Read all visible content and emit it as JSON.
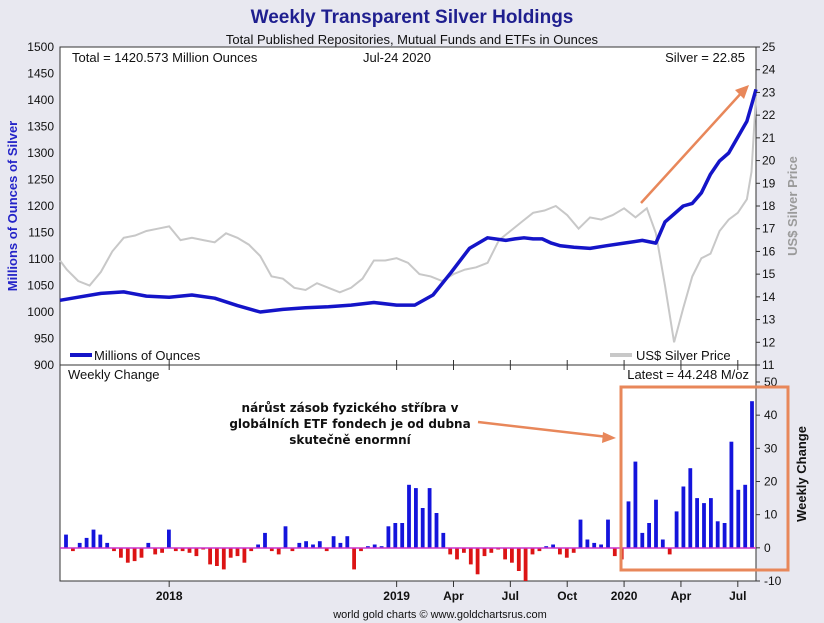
{
  "chart_data": {
    "type": "line",
    "title": "Weekly Transparent Silver Holdings",
    "subtitle": "Total Published Repositories, Mutual Funds and ETFs in Ounces",
    "total_text": "Total = 1420.573 Million Ounces",
    "date_text": "Jul-24  2020",
    "silver_text": "Silver = 22.85",
    "lower_title": "Weekly Change",
    "latest_text": "Latest = 44.248 M/oz",
    "ylabel_left": "Millions of Ounces of Silver",
    "ylabel_right": "US$ Silver Price",
    "ylabel_lower": "Weekly Change",
    "legend": {
      "holdings": "Millions of Ounces",
      "price": "US$ Silver Price"
    },
    "annotation": [
      "nárůst zásob fyzického stříbra v",
      "globálních ETF fondech je od dubna",
      "skutečně enormní"
    ],
    "footer": "world gold charts © www.goldchartsrus.com",
    "ylim_left": [
      900,
      1500
    ],
    "yticks_left": [
      900,
      950,
      1000,
      1050,
      1100,
      1150,
      1200,
      1250,
      1300,
      1350,
      1400,
      1450,
      1500
    ],
    "ylim_right": [
      11,
      25
    ],
    "yticks_right": [
      11,
      12,
      13,
      14,
      15,
      16,
      17,
      18,
      19,
      20,
      21,
      22,
      23,
      24,
      25
    ],
    "ylim_lower": [
      -10,
      50
    ],
    "yticks_lower": [
      -10,
      0,
      10,
      20,
      30,
      40,
      50
    ],
    "x_tick_labels": [
      "2018",
      "2019",
      "Apr",
      "Jul",
      "Oct",
      "2020",
      "Apr",
      "Jul"
    ],
    "x_tick_positions": [
      2018.0,
      2019.0,
      2019.25,
      2019.5,
      2019.75,
      2020.0,
      2020.25,
      2020.5
    ],
    "xlim": [
      2017.52,
      2020.58
    ],
    "holdings_series": {
      "name": "Millions of Ounces",
      "x": [
        2017.52,
        2017.6,
        2017.7,
        2017.8,
        2017.9,
        2018.0,
        2018.1,
        2018.2,
        2018.3,
        2018.4,
        2018.5,
        2018.6,
        2018.7,
        2018.8,
        2018.9,
        2019.0,
        2019.08,
        2019.16,
        2019.24,
        2019.32,
        2019.4,
        2019.48,
        2019.52,
        2019.56,
        2019.6,
        2019.64,
        2019.68,
        2019.72,
        2019.78,
        2019.85,
        2019.92,
        2020.0,
        2020.08,
        2020.14,
        2020.18,
        2020.22,
        2020.26,
        2020.3,
        2020.34,
        2020.38,
        2020.42,
        2020.46,
        2020.5,
        2020.54,
        2020.56,
        2020.58
      ],
      "values": [
        1022,
        1028,
        1035,
        1038,
        1030,
        1028,
        1032,
        1026,
        1012,
        1000,
        1005,
        1008,
        1010,
        1013,
        1018,
        1013,
        1013,
        1032,
        1075,
        1120,
        1140,
        1135,
        1138,
        1140,
        1138,
        1138,
        1130,
        1125,
        1122,
        1120,
        1125,
        1130,
        1135,
        1130,
        1170,
        1185,
        1200,
        1205,
        1225,
        1260,
        1285,
        1300,
        1330,
        1360,
        1390,
        1420
      ]
    },
    "price_series": {
      "name": "US$ Silver Price",
      "x": [
        2017.52,
        2017.55,
        2017.6,
        2017.65,
        2017.7,
        2017.75,
        2017.8,
        2017.85,
        2017.9,
        2017.95,
        2018.0,
        2018.05,
        2018.1,
        2018.15,
        2018.2,
        2018.25,
        2018.3,
        2018.35,
        2018.4,
        2018.45,
        2018.5,
        2018.55,
        2018.6,
        2018.65,
        2018.7,
        2018.75,
        2018.8,
        2018.85,
        2018.9,
        2018.95,
        2019.0,
        2019.05,
        2019.1,
        2019.15,
        2019.2,
        2019.25,
        2019.3,
        2019.35,
        2019.4,
        2019.45,
        2019.5,
        2019.55,
        2019.6,
        2019.65,
        2019.7,
        2019.75,
        2019.8,
        2019.85,
        2019.9,
        2019.95,
        2020.0,
        2020.05,
        2020.1,
        2020.14,
        2020.18,
        2020.22,
        2020.26,
        2020.3,
        2020.34,
        2020.38,
        2020.42,
        2020.46,
        2020.5,
        2020.54,
        2020.56,
        2020.58
      ],
      "values": [
        15.6,
        15.2,
        14.7,
        14.5,
        15.1,
        16.0,
        16.6,
        16.7,
        16.9,
        17.0,
        17.1,
        16.5,
        16.6,
        16.5,
        16.4,
        16.8,
        16.6,
        16.3,
        15.8,
        14.9,
        14.8,
        14.4,
        14.3,
        14.6,
        14.4,
        14.2,
        14.4,
        14.8,
        15.6,
        15.6,
        15.7,
        15.5,
        15.0,
        14.9,
        14.7,
        15.0,
        15.2,
        15.3,
        15.5,
        16.5,
        16.9,
        17.3,
        17.7,
        17.8,
        18.0,
        17.6,
        17.0,
        17.5,
        17.4,
        17.6,
        17.9,
        17.5,
        17.9,
        16.8,
        14.5,
        12.0,
        13.5,
        14.9,
        15.7,
        15.9,
        16.9,
        17.4,
        17.7,
        18.3,
        19.5,
        22.85
      ]
    },
    "weekly_change": {
      "name": "Weekly Change",
      "values": [
        4.0,
        -1.0,
        1.5,
        3.0,
        5.5,
        4.0,
        1.5,
        -1.0,
        -3.0,
        -4.5,
        -4.0,
        -3.0,
        1.5,
        -2.0,
        -1.5,
        5.5,
        -1.0,
        -1.0,
        -1.5,
        -2.5,
        -0.5,
        -5.0,
        -5.5,
        -6.5,
        -3.0,
        -2.5,
        -4.5,
        -1.0,
        1.0,
        4.5,
        -1.0,
        -2.0,
        6.5,
        -1.0,
        1.5,
        2.0,
        1.0,
        2.0,
        -1.0,
        3.5,
        1.5,
        3.5,
        -6.5,
        -1.0,
        0.5,
        1.0,
        0.5,
        6.5,
        7.5,
        7.5,
        19.0,
        18.0,
        12.0,
        18.0,
        10.5,
        4.5,
        -2.0,
        -3.5,
        -1.5,
        -5.0,
        -8.0,
        -2.5,
        -1.5,
        -0.5,
        -3.5,
        -4.5,
        -7.0,
        -10.0,
        -2.0,
        -1.0,
        0.5,
        1.0,
        -2.0,
        -3.0,
        -1.5,
        8.5,
        2.5,
        1.5,
        1.0,
        8.5,
        -2.5,
        -3.5,
        14.0,
        26.0,
        4.5,
        7.5,
        14.5,
        2.5,
        -2.0,
        11.0,
        18.5,
        24.0,
        15.0,
        13.5,
        15.0,
        8.0,
        7.5,
        32.0,
        17.5,
        19.0,
        44.2
      ]
    }
  }
}
